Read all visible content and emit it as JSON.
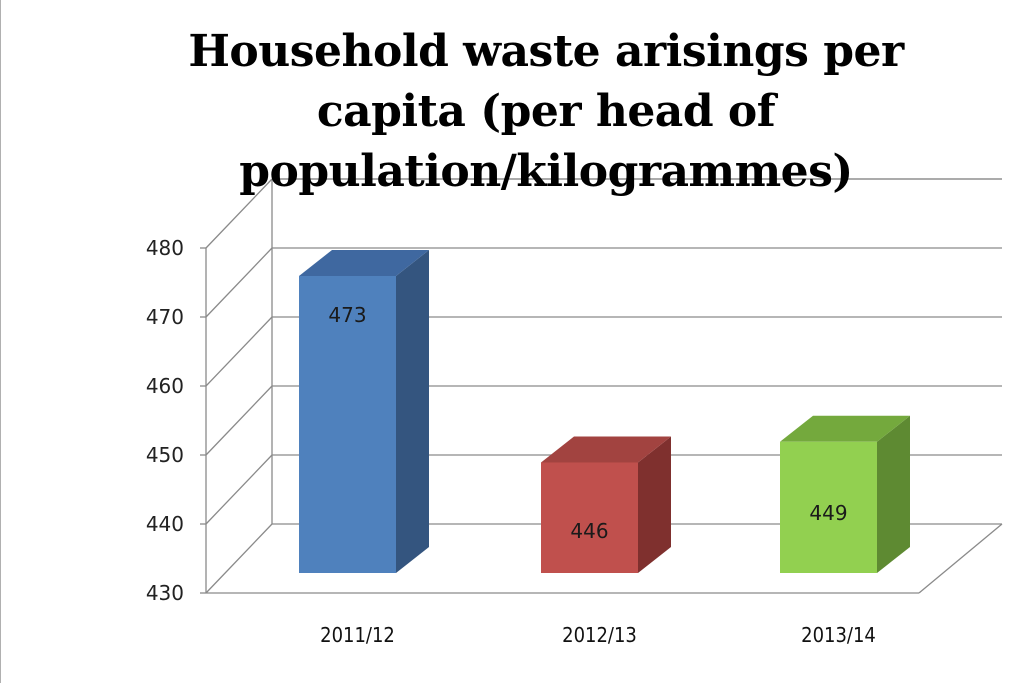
{
  "chart_data": {
    "type": "bar",
    "title": "Household waste arisings per capita (per head of population/kilogrammes)",
    "categories": [
      "2011/12",
      "2012/13",
      "2013/14"
    ],
    "values": [
      473,
      446,
      449
    ],
    "data_labels": [
      "473",
      "446",
      "449"
    ],
    "bar_colors": [
      "#4f81bd",
      "#c0504d",
      "#92d050"
    ],
    "bar_side_colors": [
      "#34557f",
      "#7f302e",
      "#5e8a32"
    ],
    "bar_top_colors": [
      "#3f68a0",
      "#a24340",
      "#74a93d"
    ],
    "ylim": [
      430,
      480
    ],
    "yticks": [
      430,
      440,
      450,
      460,
      470,
      480
    ],
    "grid": true,
    "three_d": true,
    "legend": "none",
    "xlabel": "",
    "ylabel": ""
  }
}
